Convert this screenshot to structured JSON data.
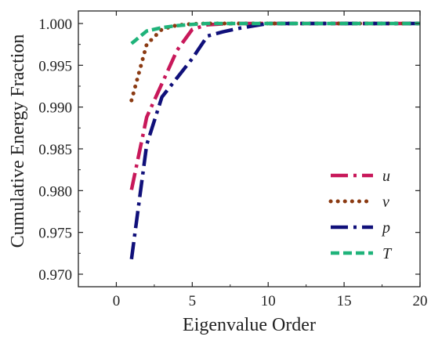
{
  "chart_data": {
    "type": "line",
    "title": "",
    "xlabel": "Eigenvalue Order",
    "ylabel": "Cumulative Energy Fraction",
    "xlim": [
      -2.5,
      20
    ],
    "ylim": [
      0.9685,
      1.0015
    ],
    "xticks": [
      0,
      5,
      10,
      15,
      20
    ],
    "yticks": [
      0.97,
      0.975,
      0.98,
      0.985,
      0.99,
      0.995,
      1.0
    ],
    "ytick_labels": [
      "0.970",
      "0.975",
      "0.980",
      "0.985",
      "0.990",
      "0.995",
      "1.000"
    ],
    "grid": false,
    "legend_position": "bottom-right",
    "series": [
      {
        "name": "u",
        "color": "#c8185a",
        "dash": "dash-dot",
        "x": [
          1,
          2,
          3,
          4,
          5,
          6,
          7,
          8,
          9,
          10,
          11,
          12,
          13,
          14,
          15,
          16,
          17,
          18,
          19,
          20
        ],
        "y": [
          0.9801,
          0.9888,
          0.9928,
          0.9968,
          0.9993,
          0.99985,
          0.99995,
          1.0,
          1.0,
          1.0,
          1.0,
          1.0,
          1.0,
          1.0,
          1.0,
          1.0,
          1.0,
          1.0,
          1.0,
          1.0
        ]
      },
      {
        "name": "v",
        "color": "#8b3a12",
        "dash": "dot",
        "x": [
          1,
          2,
          3,
          4,
          5,
          6,
          7,
          8,
          9,
          10,
          11,
          12,
          13,
          14,
          15,
          16,
          17,
          18,
          19,
          20
        ],
        "y": [
          0.9908,
          0.9975,
          0.9993,
          0.9998,
          0.99995,
          1.0,
          1.0,
          1.0,
          1.0,
          1.0,
          1.0,
          1.0,
          1.0,
          1.0,
          1.0,
          1.0,
          1.0,
          1.0,
          1.0,
          1.0
        ]
      },
      {
        "name": "p",
        "color": "#10107a",
        "dash": "dash-dot",
        "x": [
          1,
          2,
          3,
          4,
          5,
          6,
          7,
          8,
          9,
          10,
          11,
          12,
          13,
          14,
          15,
          16,
          17,
          18,
          19,
          20
        ],
        "y": [
          0.9718,
          0.9855,
          0.9912,
          0.9935,
          0.9958,
          0.9985,
          0.999,
          0.9994,
          0.9997,
          1.0,
          1.0,
          1.0,
          1.0,
          1.0,
          1.0,
          1.0,
          1.0,
          1.0,
          1.0,
          1.0
        ]
      },
      {
        "name": "T",
        "color": "#1fb37a",
        "dash": "dash",
        "x": [
          1,
          2,
          3,
          4,
          5,
          6,
          7,
          8,
          9,
          10,
          11,
          12,
          13,
          14,
          15,
          16,
          17,
          18,
          19,
          20
        ],
        "y": [
          0.9976,
          0.9991,
          0.9995,
          0.99975,
          0.9999,
          1.0,
          1.0,
          1.0,
          1.0,
          1.0,
          1.0,
          1.0,
          1.0,
          1.0,
          1.0,
          1.0,
          1.0,
          1.0,
          1.0,
          1.0
        ]
      }
    ]
  }
}
